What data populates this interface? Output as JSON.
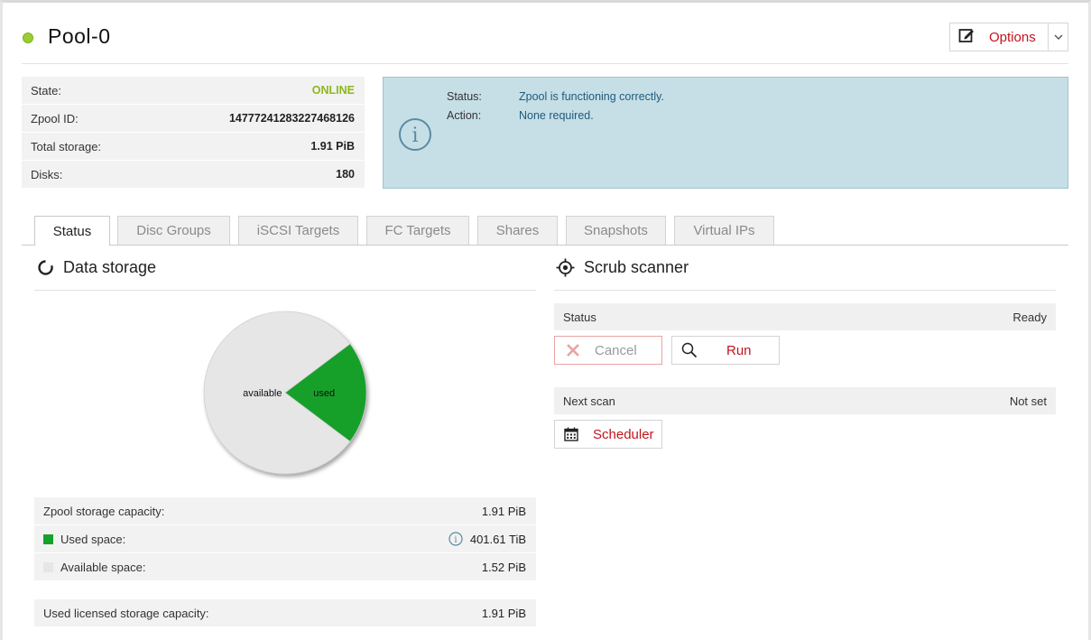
{
  "pool": {
    "name": "Pool-0",
    "status_color": "#9acd32"
  },
  "options": {
    "label": "Options"
  },
  "info": [
    {
      "label": "State:",
      "value": "ONLINE"
    },
    {
      "label": "Zpool ID:",
      "value": "14777241283227468126"
    },
    {
      "label": "Total storage:",
      "value": "1.91 PiB"
    },
    {
      "label": "Disks:",
      "value": "180"
    }
  ],
  "alert": {
    "status_label": "Status:",
    "status_value": "Zpool is functioning correctly.",
    "action_label": "Action:",
    "action_value": "None required."
  },
  "tabs": [
    {
      "label": "Status",
      "active": true
    },
    {
      "label": "Disc Groups"
    },
    {
      "label": "iSCSI Targets"
    },
    {
      "label": "FC Targets"
    },
    {
      "label": "Shares"
    },
    {
      "label": "Snapshots"
    },
    {
      "label": "Virtual IPs"
    }
  ],
  "data_storage": {
    "title": "Data storage",
    "chart_data": {
      "type": "pie",
      "slices": [
        {
          "label": "available",
          "value": 1.52,
          "unit": "PiB",
          "color": "#e6e6e6"
        },
        {
          "label": "used",
          "value": 401.61,
          "unit": "TiB",
          "color": "#16a02c"
        }
      ]
    },
    "capacity": {
      "zpool_label": "Zpool storage capacity:",
      "zpool_value": "1.91 PiB",
      "used_label": "Used space:",
      "used_value": "401.61 TiB",
      "available_label": "Available space:",
      "available_value": "1.52 PiB",
      "licensed_label": "Used licensed storage capacity:",
      "licensed_value": "1.91 PiB"
    }
  },
  "scrub": {
    "title": "Scrub scanner",
    "status_label": "Status",
    "status_value": "Ready",
    "cancel_label": "Cancel",
    "run_label": "Run",
    "next_scan_label": "Next scan",
    "next_scan_value": "Not set",
    "scheduler_label": "Scheduler"
  },
  "colors": {
    "accent_red": "#c2141c",
    "online_green": "#8db81a",
    "used_green": "#16a02c",
    "alert_bg": "#c6dfe6"
  }
}
